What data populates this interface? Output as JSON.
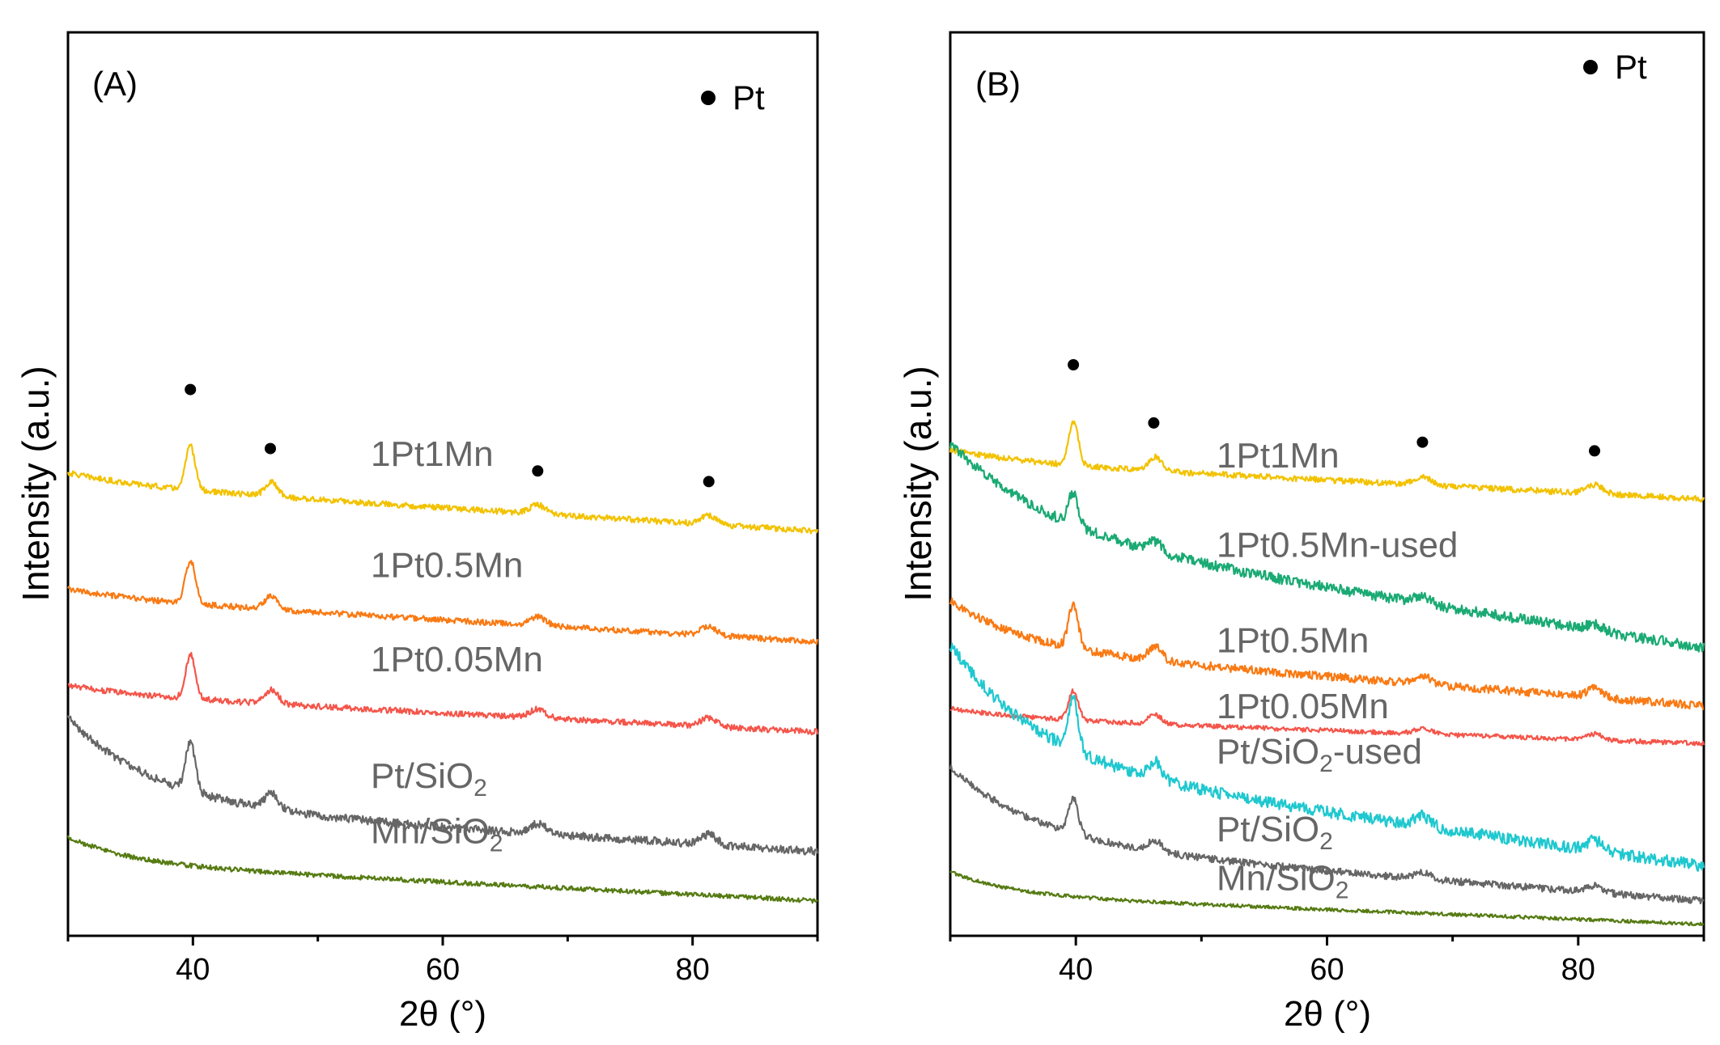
{
  "chart_data": [
    {
      "type": "line",
      "panel_label": "(A)",
      "xlabel": "2θ (°)",
      "ylabel": "Intensity (a.u.)",
      "xlim": [
        30,
        90
      ],
      "xticks": [
        40,
        60,
        80
      ],
      "y_tick_labels": false,
      "legend": {
        "marker": "●",
        "label": "Pt",
        "placement": "top-right"
      },
      "pt_peak_markers_2theta": [
        39.8,
        46.2,
        67.6,
        81.3
      ],
      "series": [
        {
          "name": "1Pt1Mn",
          "label_main": "1Pt1Mn",
          "label_sub": "",
          "label_tail": "",
          "color": "#f2c200",
          "baseline": 6.95,
          "slope": 0.8,
          "bg_amp": 0.2,
          "bg_decay": 6,
          "peak_scale": 0.75,
          "noise": 0.05
        },
        {
          "name": "1Pt0.5Mn",
          "label_main": "1Pt0.5Mn",
          "label_sub": "",
          "label_tail": "",
          "color": "#f97a14",
          "baseline": 5.05,
          "slope": 0.75,
          "bg_amp": 0.15,
          "bg_decay": 6,
          "peak_scale": 0.75,
          "noise": 0.05
        },
        {
          "name": "1Pt0.05Mn",
          "label_main": "1Pt0.05Mn",
          "label_sub": "",
          "label_tail": "",
          "color": "#f4554a",
          "baseline": 3.5,
          "slope": 0.65,
          "bg_amp": 0.15,
          "bg_decay": 6,
          "peak_scale": 0.75,
          "noise": 0.05
        },
        {
          "name": "Pt/SiO2",
          "label_main": "Pt/SiO",
          "label_sub": "2",
          "label_tail": "",
          "color": "#666666",
          "baseline": 1.45,
          "slope": 0.8,
          "bg_amp": 1.5,
          "bg_decay": 7,
          "peak_scale": 0.85,
          "noise": 0.07
        },
        {
          "name": "Mn/SiO2",
          "label_main": "Mn/SiO",
          "label_sub": "2",
          "label_tail": "",
          "color": "#567b13",
          "baseline": 0.6,
          "slope": 0.65,
          "bg_amp": 0.45,
          "bg_decay": 5,
          "peak_scale": 0,
          "noise": 0.04
        }
      ]
    },
    {
      "type": "line",
      "panel_label": "(B)",
      "xlabel": "2θ (°)",
      "ylabel": "Intensity (a.u.)",
      "xlim": [
        30,
        90
      ],
      "xticks": [
        40,
        60,
        80
      ],
      "y_tick_labels": false,
      "legend": {
        "marker": "●",
        "label": "Pt",
        "placement": "top-right"
      },
      "pt_peak_markers_2theta": [
        39.8,
        46.2,
        67.6,
        81.3
      ],
      "series": [
        {
          "name": "1Pt1Mn",
          "label_main": "1Pt1Mn",
          "label_sub": "",
          "label_tail": "",
          "color": "#f2c200",
          "baseline": 7.5,
          "slope": 0.65,
          "bg_amp": 0.2,
          "bg_decay": 6,
          "peak_scale": 0.75,
          "noise": 0.05
        },
        {
          "name": "1Pt0.5Mn-used",
          "label_main": "1Pt0.5Mn-used",
          "label_sub": "",
          "label_tail": "",
          "color": "#1aaa73",
          "baseline": 4.95,
          "slope": 2.0,
          "bg_amp": 1.5,
          "bg_decay": 8,
          "peak_scale": 0.55,
          "noise": 0.09
        },
        {
          "name": "1Pt0.5Mn",
          "label_main": "1Pt0.5Mn",
          "label_sub": "",
          "label_tail": "",
          "color": "#f97a14",
          "baseline": 3.95,
          "slope": 1.0,
          "bg_amp": 0.8,
          "bg_decay": 6,
          "peak_scale": 0.75,
          "noise": 0.07
        },
        {
          "name": "1Pt0.05Mn",
          "label_main": "1Pt0.05Mn",
          "label_sub": "",
          "label_tail": "",
          "color": "#f4554a",
          "baseline": 3.3,
          "slope": 0.45,
          "bg_amp": 0.15,
          "bg_decay": 6,
          "peak_scale": 0.5,
          "noise": 0.04
        },
        {
          "name": "Pt/SiO2-used",
          "label_main": "Pt/SiO",
          "label_sub": "2",
          "label_tail": "-used",
          "color": "#1fc8cf",
          "baseline": 1.2,
          "slope": 1.8,
          "bg_amp": 2.0,
          "bg_decay": 7,
          "peak_scale": 0.9,
          "noise": 0.1
        },
        {
          "name": "Pt/SiO2",
          "label_main": "Pt/SiO",
          "label_sub": "2",
          "label_tail": "",
          "color": "#666666",
          "baseline": 0.6,
          "slope": 1.0,
          "bg_amp": 1.3,
          "bg_decay": 7,
          "peak_scale": 0.6,
          "noise": 0.06
        },
        {
          "name": "Mn/SiO2",
          "label_main": "Mn/SiO",
          "label_sub": "2",
          "label_tail": "",
          "color": "#567b13",
          "baseline": 0.2,
          "slope": 0.5,
          "bg_amp": 0.4,
          "bg_decay": 5,
          "peak_scale": 0,
          "noise": 0.03
        }
      ]
    }
  ]
}
